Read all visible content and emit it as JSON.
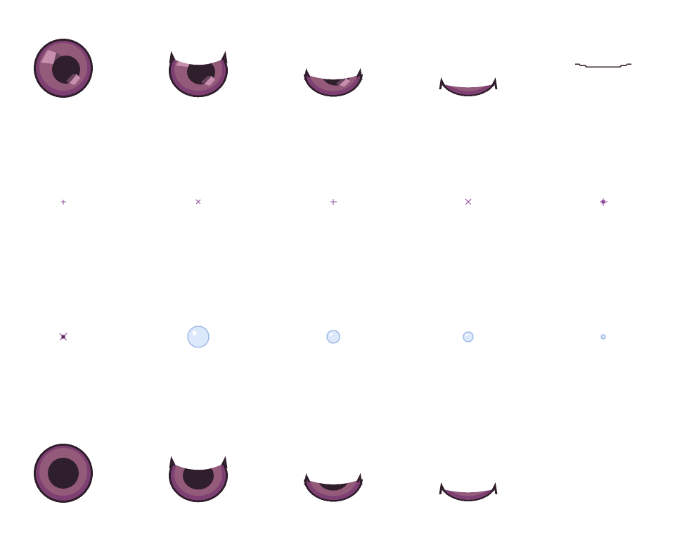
{
  "sprite_sheet": {
    "palette": {
      "outline": "#2f1e2b",
      "rim": "#7e3f72",
      "iris": "#935a7a",
      "iris_shadow": "#6a4560",
      "highlight": "#c68fae",
      "pupil": "#2f1e2b",
      "sparkle": "#8e4d9b",
      "bubble_fill": "#dce8fb",
      "bubble_stroke": "#9fb9e6",
      "background": "#ffffff"
    },
    "rows": [
      {
        "name": "eye-blink-highlighted",
        "frames": [
          {
            "kind": "eye",
            "openness": 1.0,
            "highlight": true
          },
          {
            "kind": "eye",
            "openness": 0.75,
            "highlight": true
          },
          {
            "kind": "eye",
            "openness": 0.48,
            "highlight": true
          },
          {
            "kind": "eye",
            "openness": 0.3,
            "highlight": true
          },
          {
            "kind": "closed-line"
          }
        ]
      },
      {
        "name": "sparkles",
        "frames": [
          {
            "kind": "sparkle-plus",
            "size": 1
          },
          {
            "kind": "sparkle-x",
            "size": 1
          },
          {
            "kind": "sparkle-plus",
            "size": 2
          },
          {
            "kind": "sparkle-x",
            "size": 2
          },
          {
            "kind": "sparkle-star",
            "size": 3
          }
        ]
      },
      {
        "name": "sparkle-and-bubbles",
        "frames": [
          {
            "kind": "sparkle-xstar",
            "size": 3
          },
          {
            "kind": "bubble",
            "size": 15
          },
          {
            "kind": "bubble",
            "size": 9
          },
          {
            "kind": "bubble",
            "size": 7
          },
          {
            "kind": "bubble",
            "size": 3
          }
        ]
      },
      {
        "name": "eye-blink-plain",
        "frames": [
          {
            "kind": "eye",
            "openness": 1.0,
            "highlight": false
          },
          {
            "kind": "eye",
            "openness": 0.75,
            "highlight": false
          },
          {
            "kind": "eye",
            "openness": 0.48,
            "highlight": false
          },
          {
            "kind": "eye",
            "openness": 0.3,
            "highlight": false
          }
        ]
      }
    ]
  }
}
